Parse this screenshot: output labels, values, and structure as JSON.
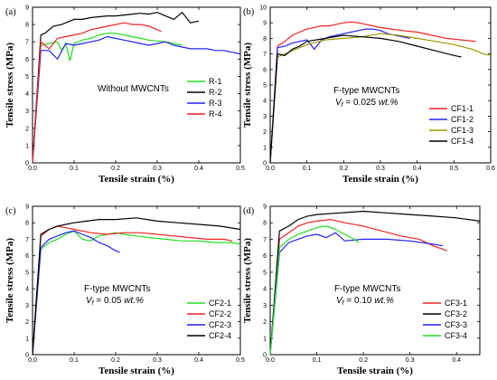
{
  "chart_data": [
    {
      "type": "line",
      "panel_label": "(a)",
      "annotation": "Without MWCNTs",
      "annotation_sub": "",
      "xlabel": "Tensile strain (%)",
      "ylabel": "Tensile stress (MPa)",
      "xlim": [
        0,
        0.5
      ],
      "ylim": [
        0,
        9
      ],
      "xticks": [
        "0.0",
        "0.1",
        "0.2",
        "0.3",
        "0.4",
        "0.5"
      ],
      "yticks": [
        "0",
        "1",
        "2",
        "3",
        "4",
        "5",
        "6",
        "7",
        "8",
        "9"
      ],
      "legend_position": "middle-right",
      "series": [
        {
          "name": "R-1",
          "color": "#22dd22",
          "x": [
            0,
            0.02,
            0.04,
            0.06,
            0.07,
            0.08,
            0.09,
            0.1,
            0.12,
            0.14,
            0.16,
            0.18,
            0.2,
            0.22,
            0.24,
            0.26,
            0.28,
            0.3,
            0.32,
            0.34,
            0.36
          ],
          "y": [
            0,
            6.8,
            6.9,
            7,
            6.5,
            6.9,
            5.9,
            6.9,
            7.1,
            7.2,
            7.4,
            7.5,
            7.5,
            7.4,
            7.3,
            7.2,
            7.1,
            7.05,
            7.0,
            6.9,
            6.8
          ]
        },
        {
          "name": "R-2",
          "color": "#000000",
          "x": [
            0,
            0.02,
            0.03,
            0.05,
            0.07,
            0.09,
            0.1,
            0.12,
            0.14,
            0.16,
            0.18,
            0.2,
            0.22,
            0.24,
            0.26,
            0.28,
            0.3,
            0.32,
            0.34,
            0.36,
            0.38,
            0.4
          ],
          "y": [
            0,
            7.4,
            7.5,
            7.9,
            8.0,
            8.2,
            8.3,
            8.3,
            8.4,
            8.45,
            8.5,
            8.5,
            8.55,
            8.6,
            8.65,
            8.6,
            8.7,
            8.5,
            8.3,
            8.7,
            8.1,
            8.2
          ]
        },
        {
          "name": "R-3",
          "color": "#2222ee",
          "x": [
            0,
            0.02,
            0.04,
            0.06,
            0.08,
            0.1,
            0.12,
            0.14,
            0.16,
            0.18,
            0.2,
            0.22,
            0.24,
            0.26,
            0.28,
            0.3,
            0.32,
            0.34,
            0.36,
            0.38,
            0.4,
            0.42,
            0.44,
            0.46,
            0.48,
            0.5
          ],
          "y": [
            0,
            6.5,
            6.5,
            6.0,
            6.9,
            6.8,
            6.9,
            7.0,
            7.1,
            7.3,
            7.2,
            7.1,
            7.0,
            6.9,
            6.8,
            6.9,
            7.0,
            6.8,
            6.7,
            6.6,
            6.6,
            6.6,
            6.5,
            6.5,
            6.4,
            6.3
          ]
        },
        {
          "name": "R-4",
          "color": "#ee2222",
          "x": [
            0,
            0.02,
            0.04,
            0.06,
            0.08,
            0.1,
            0.12,
            0.14,
            0.16,
            0.18,
            0.2,
            0.22,
            0.24,
            0.26,
            0.28,
            0.3,
            0.31
          ],
          "y": [
            0,
            7.0,
            6.6,
            7.2,
            7.3,
            7.4,
            7.5,
            7.7,
            7.8,
            7.9,
            8.0,
            8.1,
            8.0,
            8.0,
            7.9,
            7.7,
            7.6
          ]
        }
      ]
    },
    {
      "type": "line",
      "panel_label": "(b)",
      "annotation": "F-type MWCNTs",
      "annotation_sub": "Vf = 0.025 wt.%",
      "xlabel": "Tensile strain (%)",
      "ylabel": "Tensile stress (MPa)",
      "xlim": [
        0,
        0.6
      ],
      "ylim": [
        0,
        10
      ],
      "xticks": [
        "0.0",
        "0.1",
        "0.2",
        "0.3",
        "0.4",
        "0.5",
        "0.6"
      ],
      "yticks": [
        "0",
        "1",
        "2",
        "3",
        "4",
        "5",
        "6",
        "7",
        "8",
        "9",
        "10"
      ],
      "legend_position": "middle-right",
      "series": [
        {
          "name": "CF1-1",
          "color": "#ee2222",
          "x": [
            0,
            0.02,
            0.04,
            0.06,
            0.08,
            0.1,
            0.12,
            0.14,
            0.16,
            0.18,
            0.2,
            0.22,
            0.24,
            0.26,
            0.28,
            0.3,
            0.33,
            0.36,
            0.4,
            0.44,
            0.48,
            0.52,
            0.56
          ],
          "y": [
            0,
            7.5,
            7.8,
            8.2,
            8.4,
            8.6,
            8.7,
            8.8,
            8.8,
            8.9,
            9.0,
            9.05,
            9.0,
            8.9,
            8.8,
            8.7,
            8.6,
            8.5,
            8.4,
            8.2,
            8.0,
            7.9,
            7.8
          ]
        },
        {
          "name": "CF1-2",
          "color": "#2222ee",
          "x": [
            0,
            0.02,
            0.04,
            0.06,
            0.08,
            0.1,
            0.12,
            0.14,
            0.16,
            0.18,
            0.2,
            0.22,
            0.24,
            0.26,
            0.28,
            0.3,
            0.32,
            0.34,
            0.36,
            0.38
          ],
          "y": [
            0,
            7.4,
            7.5,
            7.7,
            7.8,
            7.9,
            7.3,
            7.9,
            8.1,
            8.2,
            8.3,
            8.4,
            8.5,
            8.6,
            8.6,
            8.5,
            8.3,
            8.2,
            8.1,
            8.0
          ]
        },
        {
          "name": "CF1-3",
          "color": "#999900",
          "x": [
            0,
            0.02,
            0.04,
            0.06,
            0.08,
            0.1,
            0.15,
            0.2,
            0.25,
            0.3,
            0.35,
            0.4,
            0.45,
            0.5,
            0.55,
            0.58,
            0.6
          ],
          "y": [
            0,
            6.8,
            7.0,
            7.2,
            7.4,
            7.6,
            7.9,
            8.0,
            8.1,
            8.3,
            8.2,
            8.0,
            7.8,
            7.6,
            7.3,
            7.0,
            6.9
          ]
        },
        {
          "name": "CF1-4",
          "color": "#000000",
          "x": [
            0,
            0.02,
            0.04,
            0.06,
            0.08,
            0.1,
            0.15,
            0.2,
            0.25,
            0.3,
            0.35,
            0.4,
            0.45,
            0.5,
            0.52
          ],
          "y": [
            0,
            7.0,
            6.9,
            7.3,
            7.5,
            7.8,
            8.0,
            8.2,
            8.1,
            8.0,
            7.8,
            7.5,
            7.2,
            6.9,
            6.8
          ]
        }
      ]
    },
    {
      "type": "line",
      "panel_label": "(c)",
      "annotation": "F-type MWCNTs",
      "annotation_sub": "Vf = 0.05 wt.%",
      "xlabel": "Tensile strain (%)",
      "ylabel": "Tensile stress (MPa)",
      "xlim": [
        0,
        0.5
      ],
      "ylim": [
        0,
        9
      ],
      "xticks": [
        "0.0",
        "0.1",
        "0.2",
        "0.3",
        "0.4",
        "0.5"
      ],
      "yticks": [
        "0",
        "1",
        "2",
        "3",
        "4",
        "5",
        "6",
        "7",
        "8",
        "9"
      ],
      "legend_position": "bottom-right",
      "series": [
        {
          "name": "CF2-1",
          "color": "#22dd22",
          "x": [
            0,
            0.02,
            0.04,
            0.06,
            0.08,
            0.1,
            0.12,
            0.14,
            0.16,
            0.18,
            0.2,
            0.22,
            0.25,
            0.28,
            0.32,
            0.36,
            0.4,
            0.44,
            0.48,
            0.5
          ],
          "y": [
            0,
            6.4,
            6.8,
            7.0,
            7.3,
            7.5,
            7.0,
            6.9,
            7.2,
            7.3,
            7.4,
            7.3,
            7.2,
            7.1,
            7.0,
            6.9,
            6.9,
            6.8,
            6.8,
            6.7
          ]
        },
        {
          "name": "CF2-2",
          "color": "#ee2222",
          "x": [
            0,
            0.02,
            0.04,
            0.06,
            0.08,
            0.1,
            0.14,
            0.18,
            0.22,
            0.26,
            0.3,
            0.34,
            0.38,
            0.42,
            0.46,
            0.48
          ],
          "y": [
            0,
            7.2,
            7.6,
            7.8,
            7.7,
            7.6,
            7.4,
            7.3,
            7.4,
            7.4,
            7.3,
            7.2,
            7.1,
            7.0,
            7.0,
            6.9
          ]
        },
        {
          "name": "CF2-3",
          "color": "#2222ee",
          "x": [
            0,
            0.02,
            0.04,
            0.06,
            0.08,
            0.1,
            0.12,
            0.14,
            0.16,
            0.18,
            0.2,
            0.21
          ],
          "y": [
            0,
            6.5,
            7.0,
            7.2,
            7.4,
            7.5,
            7.3,
            7.1,
            6.8,
            6.6,
            6.3,
            6.2
          ]
        },
        {
          "name": "CF2-4",
          "color": "#000000",
          "x": [
            0,
            0.02,
            0.04,
            0.06,
            0.08,
            0.1,
            0.13,
            0.16,
            0.2,
            0.25,
            0.3,
            0.35,
            0.4,
            0.45,
            0.5
          ],
          "y": [
            0,
            7.3,
            7.6,
            7.8,
            7.9,
            8.0,
            8.1,
            8.2,
            8.2,
            8.3,
            8.1,
            8.0,
            7.9,
            7.8,
            7.6
          ]
        }
      ]
    },
    {
      "type": "line",
      "panel_label": "(d)",
      "annotation": "F-type MWCNTs",
      "annotation_sub": "Vf = 0.10 wt.%",
      "xlabel": "Tensile strain (%)",
      "ylabel": "Tensile stress (MPa)",
      "xlim": [
        0,
        0.45
      ],
      "ylim": [
        0,
        9
      ],
      "xticks": [
        "0.0",
        "0.1",
        "0.2",
        "0.3",
        "0.4"
      ],
      "yticks": [
        "0",
        "1",
        "2",
        "3",
        "4",
        "5",
        "6",
        "7",
        "8",
        "9"
      ],
      "legend_position": "bottom-right",
      "series": [
        {
          "name": "CF3-1",
          "color": "#ee2222",
          "x": [
            0,
            0.02,
            0.04,
            0.06,
            0.08,
            0.1,
            0.13,
            0.16,
            0.2,
            0.24,
            0.28,
            0.32,
            0.35,
            0.38
          ],
          "y": [
            0,
            7.0,
            7.4,
            7.8,
            8.0,
            8.1,
            8.2,
            8.0,
            7.8,
            7.5,
            7.2,
            7.0,
            6.6,
            6.3
          ]
        },
        {
          "name": "CF3-2",
          "color": "#000000",
          "x": [
            0,
            0.02,
            0.04,
            0.06,
            0.08,
            0.1,
            0.15,
            0.2,
            0.25,
            0.3,
            0.35,
            0.4,
            0.45
          ],
          "y": [
            0,
            7.5,
            7.8,
            8.2,
            8.4,
            8.5,
            8.6,
            8.7,
            8.6,
            8.5,
            8.4,
            8.3,
            8.1
          ]
        },
        {
          "name": "CF3-3",
          "color": "#2222ee",
          "x": [
            0,
            0.02,
            0.04,
            0.06,
            0.08,
            0.1,
            0.12,
            0.14,
            0.16,
            0.2,
            0.25,
            0.3,
            0.35,
            0.37
          ],
          "y": [
            0,
            6.2,
            6.8,
            7.0,
            7.2,
            7.3,
            7.1,
            7.4,
            6.9,
            7.0,
            7.0,
            6.9,
            6.7,
            6.6
          ]
        },
        {
          "name": "CF3-4",
          "color": "#22dd22",
          "x": [
            0,
            0.02,
            0.04,
            0.06,
            0.08,
            0.1,
            0.12,
            0.14,
            0.16,
            0.18,
            0.19
          ],
          "y": [
            0,
            6.5,
            7.0,
            7.3,
            7.5,
            7.7,
            7.8,
            7.6,
            7.3,
            7.0,
            6.8
          ]
        }
      ]
    }
  ]
}
